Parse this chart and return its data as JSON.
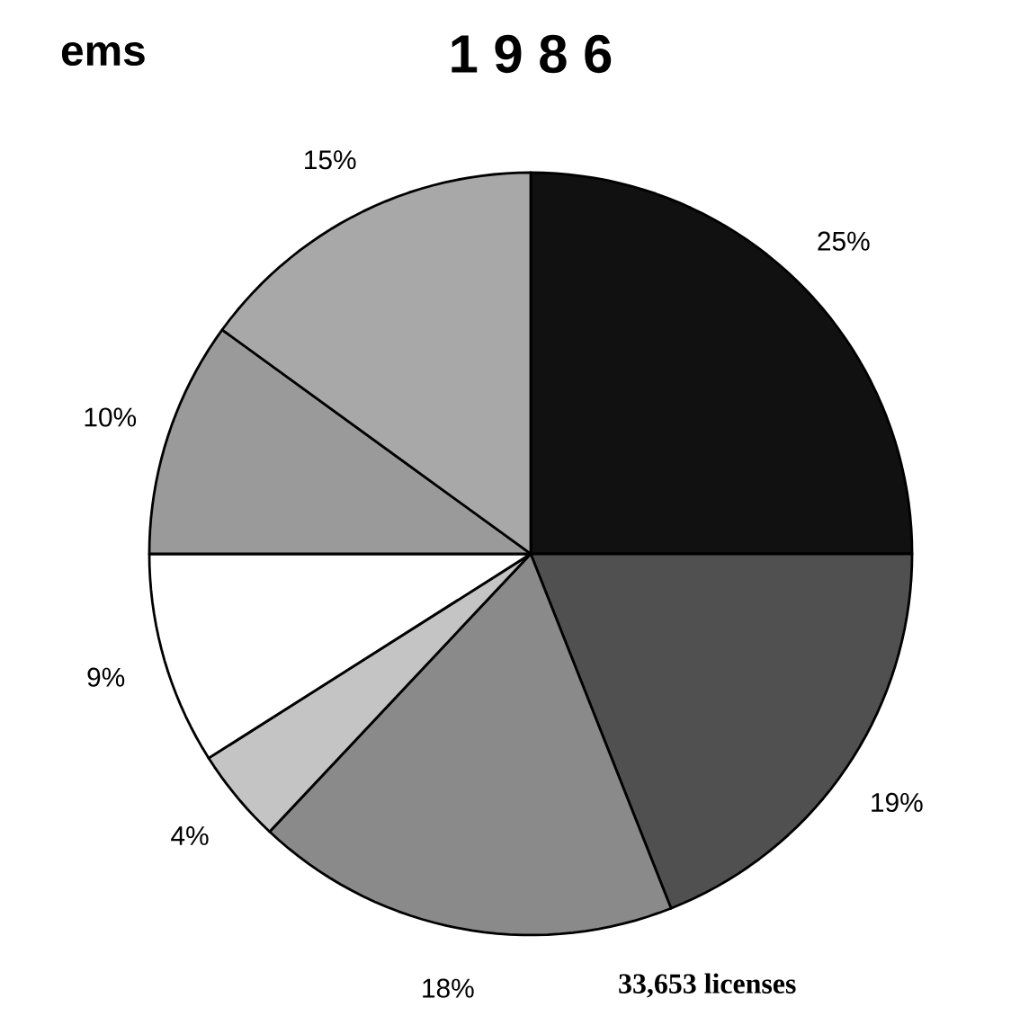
{
  "chart_data": {
    "type": "pie",
    "title": "1 9 8 6",
    "categories": [
      null,
      null,
      null,
      null,
      null,
      null,
      null
    ],
    "values": [
      25,
      19,
      18,
      4,
      9,
      10,
      15
    ],
    "colors": [
      "#111111",
      "#505050",
      "#8a8a8a",
      "#c4c4c4",
      "#ffffff",
      "#9a9a9a",
      "#a8a8a8"
    ],
    "value_labels": [
      "25%",
      "19%",
      "18%",
      "4%",
      "9%",
      "10%",
      "15%"
    ],
    "annotations": [
      "ems",
      "33,653 licenses"
    ]
  }
}
